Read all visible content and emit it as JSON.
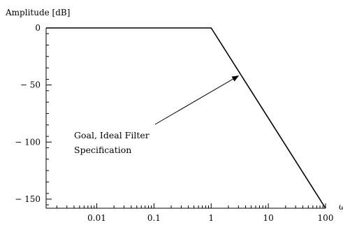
{
  "chart_data": {
    "type": "line",
    "title": "",
    "xlabel": "ω",
    "ylabel": "Amplitude [dB]",
    "x_scale": "log",
    "xlim": [
      0.0013,
      100
    ],
    "ylim": [
      -158,
      0
    ],
    "x_ticks": [
      {
        "value": 0.01,
        "label": "0.01"
      },
      {
        "value": 0.1,
        "label": "0.1"
      },
      {
        "value": 1,
        "label": "1"
      },
      {
        "value": 10,
        "label": "10"
      },
      {
        "value": 100,
        "label": "100"
      }
    ],
    "y_ticks": [
      {
        "value": 0,
        "label": "0"
      },
      {
        "value": -50,
        "label": "− 50"
      },
      {
        "value": -100,
        "label": "− 100"
      },
      {
        "value": -150,
        "label": "− 150"
      }
    ],
    "series": [
      {
        "x": [
          0.0013,
          1,
          100
        ],
        "y": [
          0,
          0,
          -158
        ],
        "color": "#000000"
      }
    ],
    "annotations": [
      {
        "lines": [
          "Goal, Ideal Filter",
          "Specification"
        ],
        "arrow_to": {
          "x": 3,
          "y": -42
        }
      }
    ],
    "grid": false
  }
}
